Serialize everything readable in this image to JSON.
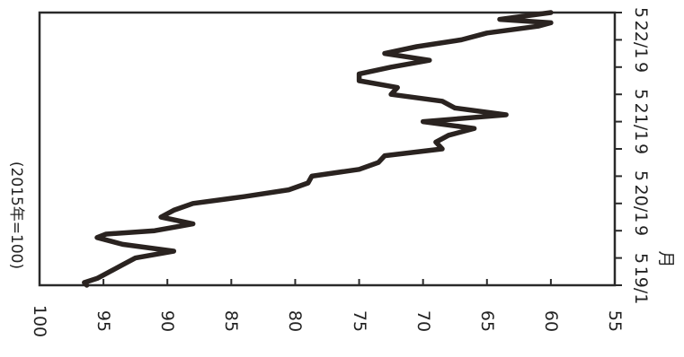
{
  "chart_data": {
    "type": "line",
    "unit_label": "(2015年=100)",
    "x_unit_label": "月",
    "ylim": [
      55,
      100
    ],
    "y_ticks": [
      100,
      95,
      90,
      85,
      80,
      75,
      70,
      65,
      60,
      55
    ],
    "x_tick_labels": [
      "19/1",
      "5",
      "9",
      "20/1",
      "5",
      "9",
      "21/1",
      "5",
      "9",
      "22/1",
      "5"
    ],
    "grid": false,
    "series": [
      {
        "color": "#2a2320",
        "x": [
          0,
          0.4,
          1,
          2,
          3,
          4,
          5,
          6,
          7,
          7.5,
          8,
          9,
          10,
          11,
          12,
          13,
          14,
          15,
          16,
          17,
          18,
          19,
          20,
          21,
          22,
          23,
          24,
          25,
          26,
          27,
          28,
          29,
          30,
          31,
          32,
          33,
          34,
          35,
          36,
          37,
          38,
          38.5,
          39,
          40
        ],
        "values": [
          96.3,
          96.5,
          95.5,
          94.5,
          93.5,
          92.5,
          89.5,
          93.5,
          95.5,
          94.8,
          91.0,
          88.0,
          90.5,
          89.5,
          88.0,
          84.0,
          80.5,
          79.0,
          78.7,
          75.0,
          73.5,
          73.0,
          68.5,
          69.0,
          68.0,
          66.0,
          70.0,
          63.5,
          67.5,
          68.5,
          72.5,
          72.0,
          75.0,
          75.0,
          72.5,
          69.5,
          73.0,
          70.5,
          67.0,
          65.0,
          61.0,
          60.0,
          64.0,
          60.0
        ]
      }
    ]
  }
}
